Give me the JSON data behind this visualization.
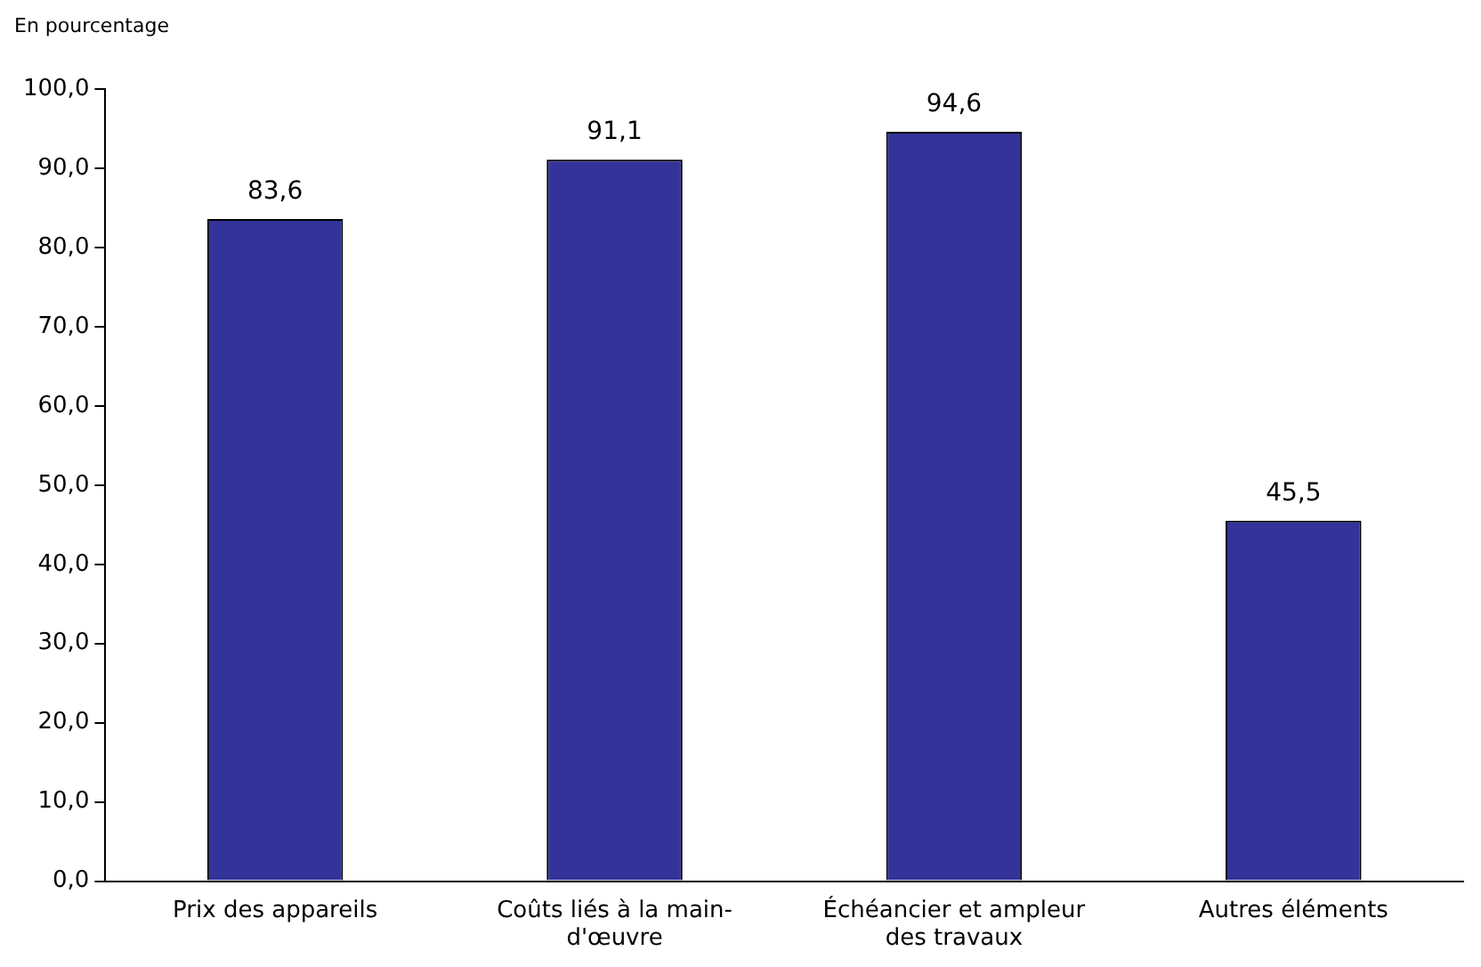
{
  "chart_data": {
    "type": "bar",
    "ylabel": "En pourcentage",
    "categories": [
      "Prix des appareils",
      "Coûts liés à la main-d'œuvre",
      "Échéancier et ampleur des travaux",
      "Autres éléments"
    ],
    "values": [
      83.6,
      91.1,
      94.6,
      45.5
    ],
    "value_labels": [
      "83,6",
      "91,1",
      "94,6",
      "45,5"
    ],
    "color": "#333399",
    "ylim": [
      0,
      100
    ],
    "yticks": [
      {
        "value": 0,
        "label": "0,0"
      },
      {
        "value": 10,
        "label": "10,0"
      },
      {
        "value": 20,
        "label": "20,0"
      },
      {
        "value": 30,
        "label": "30,0"
      },
      {
        "value": 40,
        "label": "40,0"
      },
      {
        "value": 50,
        "label": "50,0"
      },
      {
        "value": 60,
        "label": "60,0"
      },
      {
        "value": 70,
        "label": "70,0"
      },
      {
        "value": 80,
        "label": "80,0"
      },
      {
        "value": 90,
        "label": "90,0"
      },
      {
        "value": 100,
        "label": "100,0"
      }
    ],
    "grid": false,
    "legend": false
  }
}
